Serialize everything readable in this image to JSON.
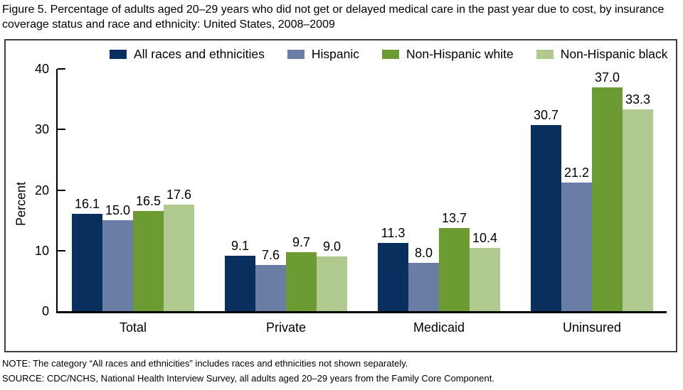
{
  "figure": {
    "title": "Figure 5. Percentage of adults aged 20–29 years who did not get or delayed medical care in the past year due to cost, by insurance coverage status and race and ethnicity: United States, 2008–2009",
    "note": "NOTE: The category “All races and ethnicities” includes races and ethnicities not shown separately.",
    "source": "SOURCE: CDC/NCHS, National Health Interview Survey, all adults aged 20–29 years from the Family Core Component."
  },
  "chart_data": {
    "type": "bar",
    "title": "Figure 5. Percentage of adults aged 20–29 years who did not get or delayed medical care in the past year due to cost, by insurance coverage status and race and ethnicity: United States, 2008–2009",
    "categories": [
      "Total",
      "Private",
      "Medicaid",
      "Uninsured"
    ],
    "series": [
      {
        "name": "All races and ethnicities",
        "color": "#092F5F",
        "values": [
          16.1,
          9.1,
          11.3,
          30.7
        ]
      },
      {
        "name": "Hispanic",
        "color": "#697DA5",
        "values": [
          15.0,
          7.6,
          8.0,
          21.2
        ]
      },
      {
        "name": "Non-Hispanic white",
        "color": "#6C9B33",
        "values": [
          16.5,
          9.7,
          13.7,
          37.0
        ]
      },
      {
        "name": "Non-Hispanic black",
        "color": "#B0C98E",
        "values": [
          17.6,
          9.0,
          10.4,
          33.3
        ]
      }
    ],
    "xlabel": "",
    "ylabel": "Percent",
    "ylim": [
      0,
      40
    ],
    "yticks": [
      0,
      10,
      20,
      30,
      40
    ],
    "legend_position": "top",
    "grid": false,
    "value_labels": true,
    "axis_color": "#000000",
    "frame_color": "#3f3f3f"
  }
}
